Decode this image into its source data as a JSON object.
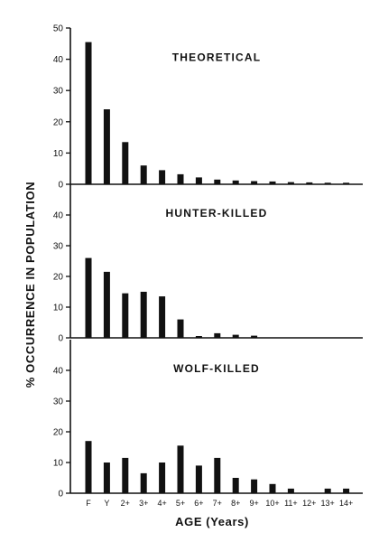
{
  "chart_data": [
    {
      "type": "bar",
      "title": "THEORETICAL",
      "categories": [
        "F",
        "Y",
        "2+",
        "3+",
        "4+",
        "5+",
        "6+",
        "7+",
        "8+",
        "9+",
        "10+",
        "11+",
        "12+",
        "13+",
        "14+"
      ],
      "values": [
        45.5,
        24,
        13.5,
        6,
        4.5,
        3.2,
        2.2,
        1.5,
        1.2,
        1,
        0.9,
        0.7,
        0.6,
        0.5,
        0.5
      ],
      "ylim": [
        0,
        50
      ],
      "yticks": [
        0,
        10,
        20,
        30,
        40,
        50
      ]
    },
    {
      "type": "bar",
      "title": "HUNTER-KILLED",
      "categories": [
        "F",
        "Y",
        "2+",
        "3+",
        "4+",
        "5+",
        "6+",
        "7+",
        "8+",
        "9+",
        "10+",
        "11+",
        "12+",
        "13+",
        "14+"
      ],
      "values": [
        26,
        21.5,
        14.5,
        15,
        13.5,
        6,
        0.6,
        1.5,
        1,
        0.7,
        0,
        0,
        0,
        0,
        0
      ],
      "ylim": [
        0,
        50
      ],
      "yticks": [
        0,
        10,
        20,
        30,
        40
      ]
    },
    {
      "type": "bar",
      "title": "WOLF-KILLED",
      "categories": [
        "F",
        "Y",
        "2+",
        "3+",
        "4+",
        "5+",
        "6+",
        "7+",
        "8+",
        "9+",
        "10+",
        "11+",
        "12+",
        "13+",
        "14+"
      ],
      "values": [
        17,
        10,
        11.5,
        6.5,
        10,
        15.5,
        9,
        11.5,
        5,
        4.5,
        3,
        1.5,
        0,
        1.5,
        1.5
      ],
      "ylim": [
        0,
        50
      ],
      "yticks": [
        0,
        10,
        20,
        30,
        40
      ]
    }
  ],
  "axes": {
    "ylabel": "% OCCURRENCE IN POPULATION",
    "xlabel": "AGE (Years)"
  }
}
